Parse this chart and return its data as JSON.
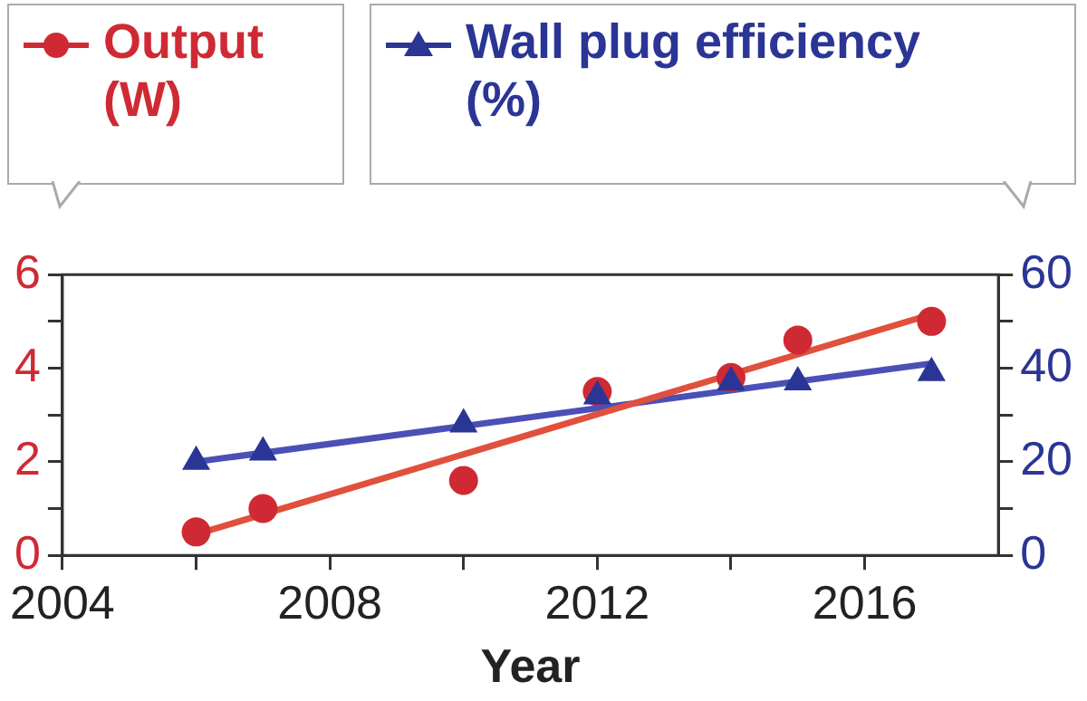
{
  "chart_data": {
    "type": "scatter",
    "xlabel": "Year",
    "legend": "top",
    "grid": false,
    "xlim": [
      2004,
      2018
    ],
    "xticks": [
      2004,
      {
        "value": 2006,
        "label": null
      },
      2008,
      {
        "value": 2010,
        "label": null
      },
      2012,
      {
        "value": 2014,
        "label": null
      },
      2016
    ],
    "ylim": [
      0,
      6
    ],
    "yticks": [
      0,
      {
        "value": 1,
        "label": null
      },
      2,
      {
        "value": 3,
        "label": null
      },
      4,
      {
        "value": 5,
        "label": null
      },
      6
    ],
    "y2lim": [
      0,
      60
    ],
    "y2ticks": [
      0,
      {
        "value": 10,
        "label": null
      },
      20,
      {
        "value": 30,
        "label": null
      },
      40,
      {
        "value": 50,
        "label": null
      },
      60
    ],
    "series": [
      {
        "name": "Output (W)",
        "type": "scatter",
        "marker": "circle",
        "color": "#cf2a33",
        "x": [
          2006,
          2007,
          2010,
          2012,
          2014,
          2015,
          2017
        ],
        "values": [
          0.5,
          1.0,
          1.6,
          3.5,
          3.8,
          4.6,
          5.0
        ]
      },
      {
        "name": "Wall plug efficiency (%)",
        "type": "scatter",
        "marker": "triangle",
        "color": "#2b3595",
        "axis": "y2",
        "x": [
          2006,
          2007,
          2010,
          2012,
          2014,
          2015,
          2017
        ],
        "values": [
          20,
          22,
          28,
          34,
          37,
          37,
          39
        ]
      },
      {
        "type": "line",
        "marker": "none",
        "color": "#e0503c",
        "x": [
          2006,
          2017
        ],
        "values": [
          0.45,
          5.15
        ]
      },
      {
        "type": "line",
        "marker": "none",
        "color": "#4a50b5",
        "axis": "y2",
        "x": [
          2006,
          2017
        ],
        "values": [
          20,
          41
        ]
      }
    ]
  }
}
